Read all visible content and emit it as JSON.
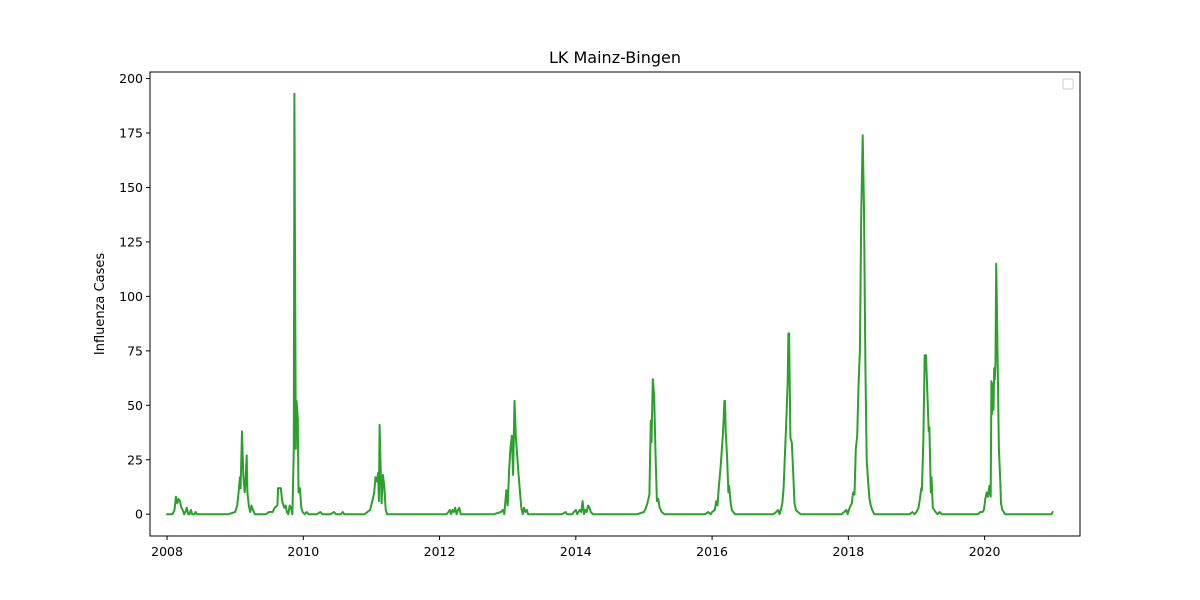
{
  "chart_data": {
    "type": "line",
    "title": "LK Mainz-Bingen",
    "xlabel": "",
    "ylabel": "Influenza Cases",
    "xlim": [
      2007.75,
      2021.4
    ],
    "ylim": [
      -10,
      203
    ],
    "x_ticks": [
      2008,
      2010,
      2012,
      2014,
      2016,
      2018,
      2020
    ],
    "x_tick_labels": [
      "2008",
      "2010",
      "2012",
      "2014",
      "2016",
      "2018",
      "2020"
    ],
    "y_ticks": [
      0,
      25,
      50,
      75,
      100,
      125,
      150,
      175,
      200
    ],
    "y_tick_labels": [
      "0",
      "25",
      "50",
      "75",
      "100",
      "125",
      "150",
      "175",
      "200"
    ],
    "grid": false,
    "legend": {
      "placement": "top-right",
      "entries": []
    },
    "colors": {
      "line": "#2ca02c",
      "axes": "#000000",
      "background": "#ffffff"
    },
    "series": [
      {
        "points": [
          [
            2008.0,
            0
          ],
          [
            2008.08,
            0
          ],
          [
            2008.11,
            2
          ],
          [
            2008.13,
            8
          ],
          [
            2008.15,
            5
          ],
          [
            2008.17,
            7
          ],
          [
            2008.19,
            6
          ],
          [
            2008.21,
            3
          ],
          [
            2008.23,
            2
          ],
          [
            2008.25,
            0
          ],
          [
            2008.27,
            1
          ],
          [
            2008.29,
            3
          ],
          [
            2008.31,
            0
          ],
          [
            2008.33,
            0
          ],
          [
            2008.35,
            2
          ],
          [
            2008.37,
            0
          ],
          [
            2008.4,
            0
          ],
          [
            2008.42,
            1
          ],
          [
            2008.44,
            0
          ],
          [
            2008.5,
            0
          ],
          [
            2008.9,
            0
          ],
          [
            2009.0,
            1
          ],
          [
            2009.03,
            4
          ],
          [
            2009.05,
            10
          ],
          [
            2009.07,
            17
          ],
          [
            2009.08,
            12
          ],
          [
            2009.1,
            38
          ],
          [
            2009.12,
            18
          ],
          [
            2009.14,
            10
          ],
          [
            2009.15,
            14
          ],
          [
            2009.17,
            27
          ],
          [
            2009.18,
            10
          ],
          [
            2009.2,
            4
          ],
          [
            2009.22,
            1
          ],
          [
            2009.24,
            4
          ],
          [
            2009.26,
            2
          ],
          [
            2009.29,
            0
          ],
          [
            2009.4,
            0
          ],
          [
            2009.45,
            0
          ],
          [
            2009.5,
            1
          ],
          [
            2009.55,
            1
          ],
          [
            2009.58,
            3
          ],
          [
            2009.62,
            4
          ],
          [
            2009.63,
            12
          ],
          [
            2009.66,
            12
          ],
          [
            2009.67,
            12
          ],
          [
            2009.69,
            6
          ],
          [
            2009.72,
            3
          ],
          [
            2009.74,
            4
          ],
          [
            2009.76,
            1
          ],
          [
            2009.78,
            0
          ],
          [
            2009.8,
            4
          ],
          [
            2009.82,
            3
          ],
          [
            2009.84,
            0
          ],
          [
            2009.86,
            30
          ],
          [
            2009.87,
            193
          ],
          [
            2009.89,
            30
          ],
          [
            2009.9,
            52
          ],
          [
            2009.92,
            44
          ],
          [
            2009.93,
            10
          ],
          [
            2009.95,
            12
          ],
          [
            2009.97,
            3
          ],
          [
            2009.99,
            1
          ],
          [
            2010.02,
            0
          ],
          [
            2010.05,
            1
          ],
          [
            2010.08,
            0
          ],
          [
            2010.15,
            0
          ],
          [
            2010.2,
            0
          ],
          [
            2010.25,
            1
          ],
          [
            2010.28,
            0
          ],
          [
            2010.4,
            0
          ],
          [
            2010.45,
            1
          ],
          [
            2010.48,
            0
          ],
          [
            2010.55,
            0
          ],
          [
            2010.58,
            1
          ],
          [
            2010.6,
            0
          ],
          [
            2010.9,
            0
          ],
          [
            2010.98,
            2
          ],
          [
            2011.02,
            7
          ],
          [
            2011.04,
            10
          ],
          [
            2011.06,
            17
          ],
          [
            2011.08,
            15
          ],
          [
            2011.1,
            19
          ],
          [
            2011.11,
            6
          ],
          [
            2011.12,
            41
          ],
          [
            2011.14,
            15
          ],
          [
            2011.15,
            5
          ],
          [
            2011.17,
            18
          ],
          [
            2011.19,
            12
          ],
          [
            2011.21,
            2
          ],
          [
            2011.23,
            0
          ],
          [
            2011.4,
            0
          ],
          [
            2011.8,
            0
          ],
          [
            2012.1,
            0
          ],
          [
            2012.13,
            1
          ],
          [
            2012.15,
            2
          ],
          [
            2012.17,
            0
          ],
          [
            2012.19,
            2
          ],
          [
            2012.21,
            1
          ],
          [
            2012.23,
            3
          ],
          [
            2012.25,
            0
          ],
          [
            2012.27,
            2
          ],
          [
            2012.29,
            3
          ],
          [
            2012.31,
            0
          ],
          [
            2012.5,
            0
          ],
          [
            2012.8,
            0
          ],
          [
            2012.9,
            1
          ],
          [
            2012.93,
            2
          ],
          [
            2012.95,
            0
          ],
          [
            2012.98,
            11
          ],
          [
            2013.0,
            4
          ],
          [
            2013.02,
            20
          ],
          [
            2013.04,
            30
          ],
          [
            2013.06,
            36
          ],
          [
            2013.08,
            18
          ],
          [
            2013.1,
            52
          ],
          [
            2013.12,
            35
          ],
          [
            2013.14,
            27
          ],
          [
            2013.16,
            18
          ],
          [
            2013.18,
            10
          ],
          [
            2013.2,
            3
          ],
          [
            2013.22,
            0
          ],
          [
            2013.24,
            3
          ],
          [
            2013.26,
            1
          ],
          [
            2013.28,
            2
          ],
          [
            2013.3,
            0
          ],
          [
            2013.5,
            0
          ],
          [
            2013.8,
            0
          ],
          [
            2013.85,
            1
          ],
          [
            2013.87,
            0
          ],
          [
            2013.95,
            0
          ],
          [
            2013.97,
            1
          ],
          [
            2014.0,
            2
          ],
          [
            2014.02,
            0
          ],
          [
            2014.04,
            1
          ],
          [
            2014.06,
            2
          ],
          [
            2014.08,
            1
          ],
          [
            2014.1,
            6
          ],
          [
            2014.12,
            0
          ],
          [
            2014.14,
            2
          ],
          [
            2014.16,
            1
          ],
          [
            2014.18,
            4
          ],
          [
            2014.2,
            3
          ],
          [
            2014.22,
            1
          ],
          [
            2014.25,
            0
          ],
          [
            2014.5,
            0
          ],
          [
            2014.9,
            0
          ],
          [
            2015.0,
            1
          ],
          [
            2015.03,
            3
          ],
          [
            2015.05,
            5
          ],
          [
            2015.08,
            9
          ],
          [
            2015.1,
            43
          ],
          [
            2015.11,
            33
          ],
          [
            2015.13,
            62
          ],
          [
            2015.15,
            54
          ],
          [
            2015.17,
            28
          ],
          [
            2015.19,
            6
          ],
          [
            2015.21,
            7
          ],
          [
            2015.23,
            3
          ],
          [
            2015.26,
            1
          ],
          [
            2015.3,
            0
          ],
          [
            2015.5,
            0
          ],
          [
            2015.9,
            0
          ],
          [
            2015.94,
            1
          ],
          [
            2015.98,
            0
          ],
          [
            2016.0,
            1
          ],
          [
            2016.04,
            2
          ],
          [
            2016.06,
            6
          ],
          [
            2016.08,
            4
          ],
          [
            2016.1,
            13
          ],
          [
            2016.12,
            20
          ],
          [
            2016.14,
            28
          ],
          [
            2016.16,
            37
          ],
          [
            2016.18,
            52
          ],
          [
            2016.19,
            52
          ],
          [
            2016.2,
            38
          ],
          [
            2016.22,
            26
          ],
          [
            2016.24,
            10
          ],
          [
            2016.25,
            13
          ],
          [
            2016.27,
            6
          ],
          [
            2016.29,
            2
          ],
          [
            2016.31,
            1
          ],
          [
            2016.34,
            0
          ],
          [
            2016.6,
            0
          ],
          [
            2016.9,
            0
          ],
          [
            2016.94,
            1
          ],
          [
            2016.97,
            2
          ],
          [
            2016.99,
            0
          ],
          [
            2017.01,
            2
          ],
          [
            2017.03,
            5
          ],
          [
            2017.05,
            12
          ],
          [
            2017.07,
            28
          ],
          [
            2017.09,
            44
          ],
          [
            2017.11,
            61
          ],
          [
            2017.12,
            83
          ],
          [
            2017.13,
            83
          ],
          [
            2017.15,
            35
          ],
          [
            2017.17,
            33
          ],
          [
            2017.19,
            19
          ],
          [
            2017.21,
            5
          ],
          [
            2017.23,
            2
          ],
          [
            2017.26,
            1
          ],
          [
            2017.3,
            0
          ],
          [
            2017.6,
            0
          ],
          [
            2017.9,
            0
          ],
          [
            2017.94,
            1
          ],
          [
            2017.97,
            2
          ],
          [
            2017.99,
            0
          ],
          [
            2018.02,
            3
          ],
          [
            2018.05,
            5
          ],
          [
            2018.07,
            10
          ],
          [
            2018.09,
            9
          ],
          [
            2018.11,
            30
          ],
          [
            2018.13,
            36
          ],
          [
            2018.15,
            60
          ],
          [
            2018.17,
            75
          ],
          [
            2018.19,
            140
          ],
          [
            2018.21,
            174
          ],
          [
            2018.23,
            140
          ],
          [
            2018.25,
            68
          ],
          [
            2018.27,
            25
          ],
          [
            2018.29,
            15
          ],
          [
            2018.31,
            7
          ],
          [
            2018.33,
            4
          ],
          [
            2018.35,
            2
          ],
          [
            2018.38,
            0
          ],
          [
            2018.6,
            0
          ],
          [
            2018.9,
            0
          ],
          [
            2018.94,
            1
          ],
          [
            2018.97,
            0
          ],
          [
            2019.0,
            1
          ],
          [
            2019.03,
            3
          ],
          [
            2019.05,
            7
          ],
          [
            2019.07,
            12
          ],
          [
            2019.08,
            11
          ],
          [
            2019.1,
            33
          ],
          [
            2019.12,
            73
          ],
          [
            2019.14,
            73
          ],
          [
            2019.16,
            55
          ],
          [
            2019.18,
            38
          ],
          [
            2019.19,
            40
          ],
          [
            2019.21,
            10
          ],
          [
            2019.22,
            17
          ],
          [
            2019.24,
            3
          ],
          [
            2019.26,
            2
          ],
          [
            2019.28,
            1
          ],
          [
            2019.31,
            0
          ],
          [
            2019.34,
            1
          ],
          [
            2019.37,
            0
          ],
          [
            2019.6,
            0
          ],
          [
            2019.9,
            0
          ],
          [
            2019.94,
            1
          ],
          [
            2019.97,
            1
          ],
          [
            2019.99,
            2
          ],
          [
            2020.01,
            7
          ],
          [
            2020.03,
            10
          ],
          [
            2020.05,
            8
          ],
          [
            2020.07,
            13
          ],
          [
            2020.09,
            8
          ],
          [
            2020.1,
            61
          ],
          [
            2020.11,
            46
          ],
          [
            2020.12,
            60
          ],
          [
            2020.13,
            48
          ],
          [
            2020.14,
            67
          ],
          [
            2020.15,
            62
          ],
          [
            2020.16,
            70
          ],
          [
            2020.17,
            115
          ],
          [
            2020.18,
            95
          ],
          [
            2020.2,
            52
          ],
          [
            2020.21,
            30
          ],
          [
            2020.23,
            15
          ],
          [
            2020.24,
            5
          ],
          [
            2020.26,
            2
          ],
          [
            2020.28,
            1
          ],
          [
            2020.3,
            0
          ],
          [
            2020.5,
            0
          ],
          [
            2020.98,
            0
          ],
          [
            2021.0,
            1
          ]
        ]
      }
    ]
  }
}
